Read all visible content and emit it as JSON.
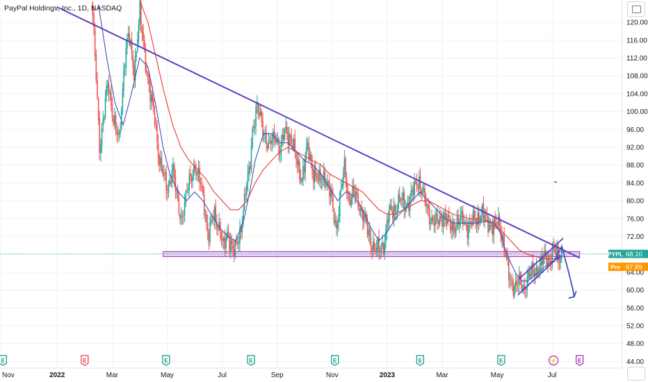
{
  "header": {
    "title": "PayPal Holdings, Inc., 1D, NASDAQ"
  },
  "price_labels": {
    "last": {
      "symbol": "PYPL",
      "value": "68.10",
      "color": "#26a69a"
    },
    "pre": {
      "symbol": "Pre",
      "value": "67.89",
      "color": "#ff9800"
    }
  },
  "chart_data": {
    "type": "candlestick",
    "title": "PayPal Holdings, Inc., 1D, NASDAQ",
    "ylim": [
      42.5,
      125
    ],
    "y_ticks": [
      44,
      48,
      52,
      56,
      60,
      64,
      68,
      72,
      76,
      80,
      84,
      88,
      92,
      96,
      100,
      104,
      108,
      112,
      116,
      120
    ],
    "x_ticks": [
      {
        "label": "Nov",
        "t": -0.08
      },
      {
        "label": "2022",
        "t": 2,
        "bold": true
      },
      {
        "label": "Mar",
        "t": 4
      },
      {
        "label": "May",
        "t": 6
      },
      {
        "label": "Jul",
        "t": 8
      },
      {
        "label": "Sep",
        "t": 10
      },
      {
        "label": "Nov",
        "t": 12
      },
      {
        "label": "2023",
        "t": 14,
        "bold": true
      },
      {
        "label": "Mar",
        "t": 16
      },
      {
        "label": "May",
        "t": 18
      },
      {
        "label": "Jul",
        "t": 20
      }
    ],
    "xlim": [
      -0.08,
      22.55
    ],
    "close_path": [
      [
        3.25,
        125
      ],
      [
        3.4,
        110
      ],
      [
        3.55,
        92
      ],
      [
        3.7,
        99
      ],
      [
        3.85,
        107
      ],
      [
        4.05,
        98
      ],
      [
        4.25,
        93
      ],
      [
        4.45,
        112
      ],
      [
        4.6,
        117
      ],
      [
        4.8,
        109
      ],
      [
        5.0,
        122
      ],
      [
        5.2,
        112
      ],
      [
        5.4,
        103
      ],
      [
        5.55,
        98
      ],
      [
        5.7,
        90
      ],
      [
        5.85,
        86
      ],
      [
        6.0,
        82
      ],
      [
        6.2,
        88
      ],
      [
        6.35,
        80
      ],
      [
        6.5,
        76
      ],
      [
        6.65,
        80
      ],
      [
        6.8,
        84
      ],
      [
        7.0,
        88
      ],
      [
        7.2,
        84
      ],
      [
        7.35,
        79
      ],
      [
        7.5,
        72
      ],
      [
        7.7,
        77
      ],
      [
        7.9,
        74
      ],
      [
        8.05,
        69
      ],
      [
        8.2,
        73
      ],
      [
        8.45,
        68
      ],
      [
        8.65,
        73
      ],
      [
        8.85,
        82
      ],
      [
        9.0,
        87
      ],
      [
        9.1,
        96
      ],
      [
        9.25,
        101
      ],
      [
        9.45,
        97
      ],
      [
        9.7,
        92
      ],
      [
        9.95,
        95
      ],
      [
        10.1,
        91
      ],
      [
        10.3,
        96
      ],
      [
        10.5,
        94
      ],
      [
        10.7,
        89
      ],
      [
        10.9,
        85
      ],
      [
        11.1,
        92
      ],
      [
        11.3,
        87
      ],
      [
        11.5,
        84
      ],
      [
        11.7,
        86
      ],
      [
        11.95,
        81
      ],
      [
        12.15,
        74
      ],
      [
        12.3,
        81
      ],
      [
        12.45,
        88
      ],
      [
        12.6,
        80
      ],
      [
        12.8,
        82
      ],
      [
        13.0,
        79
      ],
      [
        13.15,
        76
      ],
      [
        13.35,
        72
      ],
      [
        13.55,
        69
      ],
      [
        13.75,
        69
      ],
      [
        13.9,
        71
      ],
      [
        14.05,
        77
      ],
      [
        14.25,
        78
      ],
      [
        14.45,
        80
      ],
      [
        14.7,
        79
      ],
      [
        14.95,
        82
      ],
      [
        15.15,
        85
      ],
      [
        15.4,
        79
      ],
      [
        15.6,
        76
      ],
      [
        15.85,
        75
      ],
      [
        16.05,
        77
      ],
      [
        16.3,
        74
      ],
      [
        16.55,
        75
      ],
      [
        16.75,
        76
      ],
      [
        16.95,
        74
      ],
      [
        17.2,
        76
      ],
      [
        17.45,
        77
      ],
      [
        17.7,
        75
      ],
      [
        17.9,
        74
      ],
      [
        18.1,
        75
      ],
      [
        18.25,
        70
      ],
      [
        18.35,
        66
      ],
      [
        18.45,
        62
      ],
      [
        18.6,
        61
      ],
      [
        18.75,
        62
      ],
      [
        18.95,
        60
      ],
      [
        19.1,
        63
      ],
      [
        19.3,
        64
      ],
      [
        19.5,
        65
      ],
      [
        19.7,
        67
      ],
      [
        19.9,
        67
      ],
      [
        20.05,
        69
      ],
      [
        20.2,
        67
      ],
      [
        20.35,
        68.1
      ]
    ],
    "wick_amplitude": 1.6,
    "ma_fast": [
      [
        3.5,
        124
      ],
      [
        3.8,
        112
      ],
      [
        4.1,
        102
      ],
      [
        4.4,
        97
      ],
      [
        4.7,
        104
      ],
      [
        5.0,
        112
      ],
      [
        5.3,
        110
      ],
      [
        5.6,
        101
      ],
      [
        5.85,
        92
      ],
      [
        6.1,
        86
      ],
      [
        6.4,
        82
      ],
      [
        6.7,
        80
      ],
      [
        7.0,
        82
      ],
      [
        7.3,
        80
      ],
      [
        7.6,
        77
      ],
      [
        7.9,
        74
      ],
      [
        8.2,
        72
      ],
      [
        8.5,
        71
      ],
      [
        8.8,
        76
      ],
      [
        9.0,
        82
      ],
      [
        9.2,
        89
      ],
      [
        9.5,
        95
      ],
      [
        9.8,
        95
      ],
      [
        10.1,
        93
      ],
      [
        10.4,
        93
      ],
      [
        10.7,
        91
      ],
      [
        11.0,
        89
      ],
      [
        11.3,
        88
      ],
      [
        11.6,
        86
      ],
      [
        11.9,
        83
      ],
      [
        12.2,
        80
      ],
      [
        12.5,
        82
      ],
      [
        12.8,
        81
      ],
      [
        13.1,
        78
      ],
      [
        13.4,
        74
      ],
      [
        13.7,
        71
      ],
      [
        14.0,
        73
      ],
      [
        14.3,
        76
      ],
      [
        14.6,
        78
      ],
      [
        14.9,
        80
      ],
      [
        15.2,
        82
      ],
      [
        15.5,
        80
      ],
      [
        15.8,
        78
      ],
      [
        16.1,
        76
      ],
      [
        16.4,
        75
      ],
      [
        16.7,
        75
      ],
      [
        17.0,
        75
      ],
      [
        17.3,
        75
      ],
      [
        17.6,
        75.5
      ],
      [
        17.9,
        75
      ],
      [
        18.1,
        73
      ],
      [
        18.3,
        69
      ],
      [
        18.5,
        66
      ],
      [
        18.7,
        63.5
      ],
      [
        18.9,
        62
      ],
      [
        19.1,
        62
      ],
      [
        19.3,
        63
      ],
      [
        19.6,
        64.5
      ],
      [
        19.9,
        66
      ],
      [
        20.2,
        67
      ],
      [
        20.35,
        67.6
      ]
    ],
    "ma_slow": [
      [
        5.0,
        125
      ],
      [
        5.3,
        120
      ],
      [
        5.6,
        112
      ],
      [
        5.9,
        104
      ],
      [
        6.2,
        97
      ],
      [
        6.5,
        92
      ],
      [
        6.8,
        89
      ],
      [
        7.1,
        87
      ],
      [
        7.4,
        85
      ],
      [
        7.7,
        82
      ],
      [
        8.0,
        80
      ],
      [
        8.3,
        78
      ],
      [
        8.6,
        78
      ],
      [
        8.9,
        80
      ],
      [
        9.2,
        84
      ],
      [
        9.5,
        87
      ],
      [
        9.8,
        89
      ],
      [
        10.1,
        91
      ],
      [
        10.4,
        92
      ],
      [
        10.7,
        91
      ],
      [
        11.0,
        90
      ],
      [
        11.3,
        89
      ],
      [
        11.6,
        88
      ],
      [
        11.9,
        86
      ],
      [
        12.2,
        85
      ],
      [
        12.5,
        84
      ],
      [
        12.8,
        83
      ],
      [
        13.1,
        82
      ],
      [
        13.4,
        80
      ],
      [
        13.7,
        78
      ],
      [
        14.0,
        77
      ],
      [
        14.3,
        77
      ],
      [
        14.6,
        78
      ],
      [
        14.9,
        79
      ],
      [
        15.2,
        80
      ],
      [
        15.5,
        80
      ],
      [
        15.8,
        79
      ],
      [
        16.1,
        78
      ],
      [
        16.4,
        77
      ],
      [
        16.7,
        76.5
      ],
      [
        17.0,
        76
      ],
      [
        17.3,
        76
      ],
      [
        17.6,
        75.5
      ],
      [
        17.9,
        74.5
      ],
      [
        18.2,
        73
      ],
      [
        18.5,
        71
      ],
      [
        18.8,
        69
      ],
      [
        19.1,
        68
      ],
      [
        19.4,
        67.5
      ],
      [
        19.7,
        67
      ],
      [
        20.0,
        67
      ],
      [
        20.35,
        67
      ]
    ],
    "downtrend_line": {
      "from": [
        2,
        123.4
      ],
      "to": [
        21,
        67.2
      ]
    },
    "support_zone": {
      "y_low": 67.5,
      "y_high": 68.6,
      "x_from": 5.85,
      "x_to": 21.0
    },
    "channel_lower": {
      "from": [
        18.75,
        58.9
      ],
      "to": [
        20.3,
        67.8
      ]
    },
    "channel_upper": {
      "from": [
        18.8,
        62.5
      ],
      "to": [
        20.4,
        71.6
      ]
    },
    "forecast_arrow": [
      [
        20.05,
        66.2
      ],
      [
        20.35,
        69.8
      ],
      [
        20.6,
        64
      ],
      [
        20.75,
        60.2
      ],
      [
        20.8,
        58.5
      ]
    ],
    "pointer_mark": {
      "x": 20.12,
      "y": 84.2
    },
    "events": [
      {
        "t": 0.03,
        "letter": "E",
        "kind": "earnings",
        "color": "#089981"
      },
      {
        "t": 3.0,
        "letter": "E",
        "kind": "earnings",
        "color": "#f23645"
      },
      {
        "t": 5.96,
        "letter": "E",
        "kind": "earnings",
        "color": "#089981"
      },
      {
        "t": 9.05,
        "letter": "E",
        "kind": "earnings",
        "color": "#089981"
      },
      {
        "t": 12.1,
        "letter": "E",
        "kind": "earnings",
        "color": "#089981"
      },
      {
        "t": 15.2,
        "letter": "E",
        "kind": "earnings",
        "color": "#089981"
      },
      {
        "t": 18.15,
        "letter": "E",
        "kind": "earnings",
        "color": "#089981"
      },
      {
        "t": 20.05,
        "letter": "⚡",
        "kind": "split",
        "color": "#9c27b0"
      },
      {
        "t": 21.0,
        "letter": "E",
        "kind": "upcoming",
        "color": "#9c27b0"
      }
    ],
    "colors": {
      "up": "#26a69a",
      "down": "#ef5350",
      "ma_fast": "#3f51b5",
      "ma_slow": "#e53935",
      "trend": "#5b3fc4",
      "zone_fill": "#d9b3f0",
      "zone_stroke": "#9c27b0",
      "grid": "#eef0f3"
    }
  }
}
